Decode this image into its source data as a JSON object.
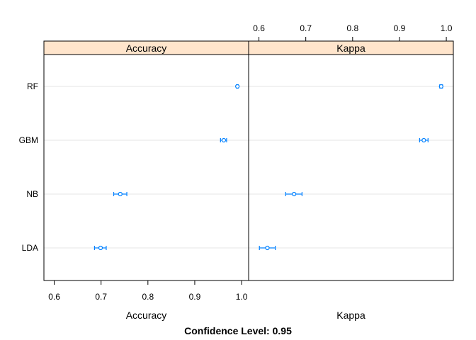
{
  "chart_data": {
    "type": "dotplot",
    "categories": [
      "RF",
      "GBM",
      "NB",
      "LDA"
    ],
    "panels": [
      {
        "name": "Accuracy",
        "strip_label": "Accuracy",
        "xlabel": "Accuracy",
        "xlim": [
          0.578,
          1.015
        ],
        "ticks": [
          0.6,
          0.7,
          0.8,
          0.9,
          1.0
        ],
        "tick_labels": [
          "0.6",
          "0.7",
          "0.8",
          "0.9",
          "1.0"
        ],
        "tick_side": "bottom",
        "points": [
          {
            "category": "RF",
            "estimate": 0.991,
            "lower": 0.989,
            "upper": 0.993
          },
          {
            "category": "GBM",
            "estimate": 0.962,
            "lower": 0.955,
            "upper": 0.968
          },
          {
            "category": "NB",
            "estimate": 0.741,
            "lower": 0.727,
            "upper": 0.755
          },
          {
            "category": "LDA",
            "estimate": 0.699,
            "lower": 0.686,
            "upper": 0.711
          }
        ]
      },
      {
        "name": "Kappa",
        "strip_label": "Kappa",
        "xlabel": "Kappa",
        "xlim": [
          0.578,
          1.015
        ],
        "ticks": [
          0.6,
          0.7,
          0.8,
          0.9,
          1.0
        ],
        "tick_labels": [
          "0.6",
          "0.7",
          "0.8",
          "0.9",
          "1.0"
        ],
        "tick_side": "top",
        "points": [
          {
            "category": "RF",
            "estimate": 0.989,
            "lower": 0.986,
            "upper": 0.992
          },
          {
            "category": "GBM",
            "estimate": 0.952,
            "lower": 0.943,
            "upper": 0.961
          },
          {
            "category": "NB",
            "estimate": 0.675,
            "lower": 0.657,
            "upper": 0.692
          },
          {
            "category": "LDA",
            "estimate": 0.618,
            "lower": 0.601,
            "upper": 0.635
          }
        ]
      }
    ],
    "footer": "Confidence Level: 0.95",
    "grid": true,
    "colors": {
      "strip_bg": "#ffe5cc",
      "point": "#0080ff",
      "grid": "#e6e6e6",
      "frame": "#000000"
    }
  }
}
